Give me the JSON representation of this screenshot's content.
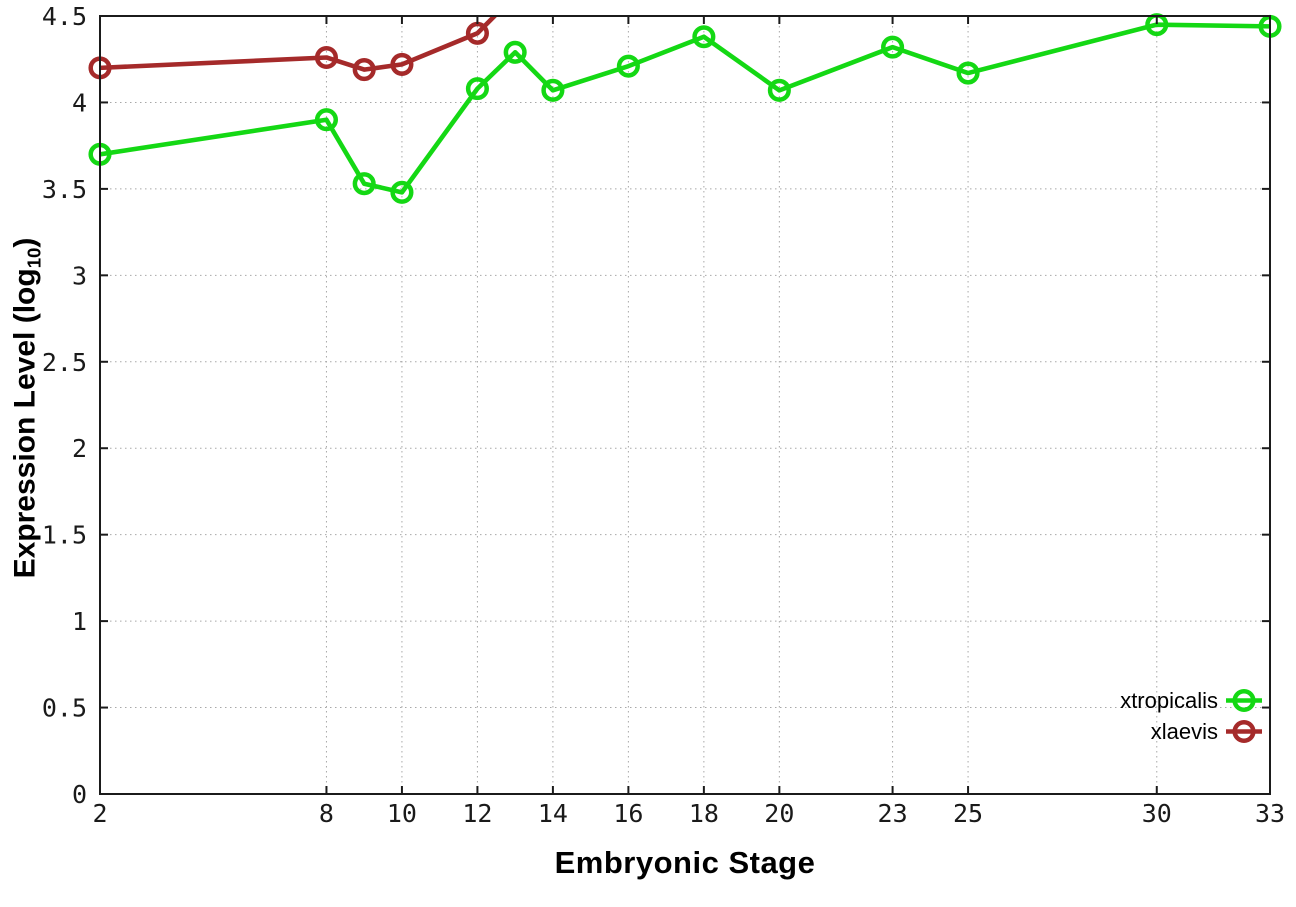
{
  "page": {
    "background": "#ffffff"
  },
  "chart_data": {
    "type": "line",
    "title": "",
    "xlabel": "Embryonic Stage",
    "ylabel": {
      "prefix": "Expression Level (log",
      "sub": "10",
      "suffix": ")"
    },
    "xlim": [
      2,
      33
    ],
    "ylim": [
      0,
      4.5
    ],
    "x_ticks": [
      2,
      8,
      10,
      12,
      14,
      16,
      18,
      20,
      23,
      25,
      30,
      33
    ],
    "y_ticks": [
      0,
      0.5,
      1,
      1.5,
      2,
      2.5,
      3,
      3.5,
      4,
      4.5
    ],
    "grid": true,
    "grid_style": "dotted",
    "legend_position": "bottom-right-inside",
    "marker": "open-circle",
    "series": [
      {
        "name": "xtropicalis",
        "color": "#14d814",
        "points": [
          [
            2,
            3.7
          ],
          [
            8,
            3.9
          ],
          [
            9,
            3.53
          ],
          [
            10,
            3.48
          ],
          [
            12,
            4.08
          ],
          [
            13,
            4.29
          ],
          [
            14,
            4.07
          ],
          [
            16,
            4.21
          ],
          [
            18,
            4.38
          ],
          [
            20,
            4.07
          ],
          [
            23,
            4.32
          ],
          [
            25,
            4.17
          ],
          [
            30,
            4.45
          ],
          [
            33,
            4.44
          ]
        ]
      },
      {
        "name": "xlaevis",
        "color": "#a52a2a",
        "points": [
          [
            2,
            4.2
          ],
          [
            8,
            4.26
          ],
          [
            9,
            4.19
          ],
          [
            10,
            4.22
          ],
          [
            12,
            4.4
          ],
          [
            13,
            4.62
          ]
        ],
        "note": "last point exits above the top axis; line is clipped at y=4.5"
      }
    ],
    "colors": {
      "axis": "#1b1b1b",
      "grid": "#a8a8a8",
      "tick_text": "#1a1a1a"
    }
  }
}
